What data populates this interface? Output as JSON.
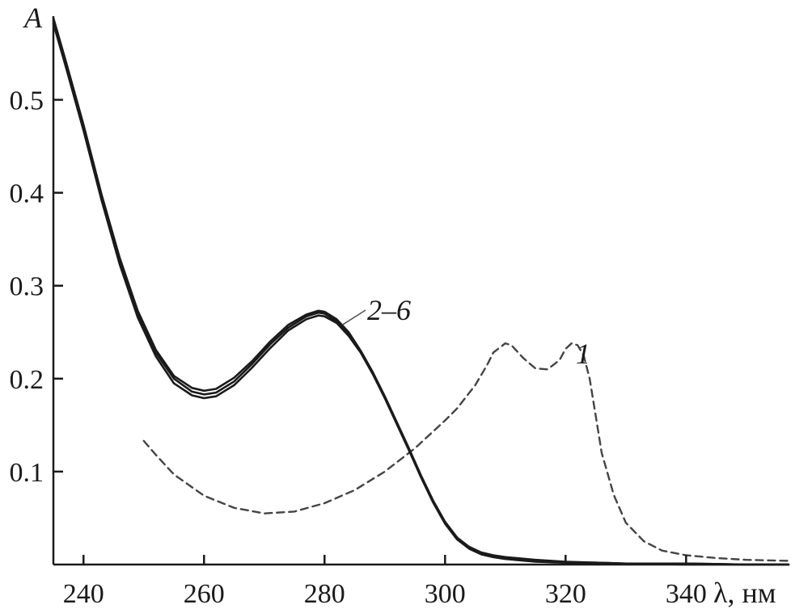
{
  "chart_data": {
    "type": "line",
    "title": "",
    "xlabel": "λ, нм",
    "ylabel": "A",
    "xlim": [
      235,
      357
    ],
    "ylim": [
      0,
      0.59
    ],
    "x_ticks": [
      240,
      260,
      280,
      300,
      320,
      340
    ],
    "x_tick_labels": [
      "240",
      "260",
      "280",
      "300",
      "320",
      "340"
    ],
    "y_ticks": [
      0.1,
      0.2,
      0.3,
      0.4,
      0.5
    ],
    "y_tick_labels": [
      "0.1",
      "0.2",
      "0.3",
      "0.4",
      "0.5"
    ],
    "grid": false,
    "colors": {
      "line": "#1a1a1a",
      "dashed": "#444444"
    },
    "curve_labels": {
      "solid_group": "2–6",
      "dashed": "1"
    },
    "series": [
      {
        "style": "dashed",
        "x": [
          250,
          252,
          255,
          260,
          265,
          270,
          275,
          280,
          285,
          290,
          295,
          300,
          302,
          305,
          307,
          308,
          310,
          311,
          313,
          315,
          317,
          319,
          320,
          321,
          322,
          323,
          324,
          325,
          326,
          328,
          330,
          333,
          336,
          340,
          345,
          350,
          357
        ],
        "y": [
          0.133,
          0.118,
          0.097,
          0.074,
          0.061,
          0.055,
          0.057,
          0.066,
          0.08,
          0.1,
          0.125,
          0.155,
          0.168,
          0.193,
          0.215,
          0.228,
          0.238,
          0.236,
          0.222,
          0.211,
          0.21,
          0.22,
          0.232,
          0.238,
          0.236,
          0.225,
          0.2,
          0.16,
          0.12,
          0.075,
          0.045,
          0.025,
          0.015,
          0.01,
          0.007,
          0.005,
          0.004
        ]
      },
      {
        "style": "solid",
        "x": [
          235,
          237,
          240,
          243,
          246,
          249,
          252,
          255,
          258,
          260,
          262,
          265,
          268,
          271,
          274,
          277,
          279,
          280,
          282,
          284,
          286,
          288,
          290,
          292,
          294,
          296,
          298,
          300,
          302,
          304,
          306,
          308,
          310,
          315,
          320,
          325,
          330,
          340,
          350,
          357
        ],
        "y": [
          0.585,
          0.54,
          0.47,
          0.395,
          0.327,
          0.27,
          0.228,
          0.2,
          0.186,
          0.183,
          0.185,
          0.197,
          0.216,
          0.237,
          0.255,
          0.267,
          0.271,
          0.27,
          0.262,
          0.248,
          0.229,
          0.206,
          0.18,
          0.152,
          0.124,
          0.095,
          0.068,
          0.045,
          0.028,
          0.018,
          0.012,
          0.009,
          0.007,
          0.004,
          0.002,
          0.002,
          0.001,
          0.001,
          0.0,
          0.0
        ]
      },
      {
        "style": "solid",
        "x": [
          235,
          237,
          240,
          243,
          246,
          249,
          252,
          255,
          258,
          260,
          262,
          265,
          268,
          271,
          274,
          277,
          279,
          280,
          282,
          284,
          286,
          288,
          290,
          292,
          294,
          296,
          298,
          300,
          302,
          304,
          306,
          308,
          310,
          315,
          320,
          325,
          330,
          340,
          350,
          357
        ],
        "y": [
          0.582,
          0.537,
          0.467,
          0.392,
          0.323,
          0.266,
          0.224,
          0.195,
          0.182,
          0.179,
          0.181,
          0.193,
          0.212,
          0.233,
          0.252,
          0.264,
          0.268,
          0.267,
          0.26,
          0.246,
          0.228,
          0.205,
          0.179,
          0.151,
          0.123,
          0.094,
          0.067,
          0.044,
          0.027,
          0.017,
          0.011,
          0.008,
          0.006,
          0.003,
          0.002,
          0.001,
          0.001,
          0.0,
          0.0,
          0.0
        ]
      },
      {
        "style": "solid",
        "x": [
          235,
          237,
          240,
          243,
          246,
          249,
          252,
          255,
          258,
          260,
          262,
          265,
          268,
          271,
          274,
          277,
          279,
          280,
          282,
          284,
          286,
          288,
          290,
          292,
          294,
          296,
          298,
          300,
          302,
          304,
          306,
          308,
          310,
          315,
          320,
          325,
          330,
          340,
          350,
          357
        ],
        "y": [
          0.588,
          0.543,
          0.473,
          0.398,
          0.33,
          0.273,
          0.231,
          0.203,
          0.19,
          0.187,
          0.189,
          0.201,
          0.219,
          0.24,
          0.258,
          0.269,
          0.273,
          0.272,
          0.264,
          0.25,
          0.23,
          0.207,
          0.181,
          0.153,
          0.125,
          0.096,
          0.069,
          0.046,
          0.029,
          0.019,
          0.013,
          0.01,
          0.008,
          0.005,
          0.003,
          0.002,
          0.001,
          0.001,
          0.0,
          0.0
        ]
      }
    ]
  }
}
